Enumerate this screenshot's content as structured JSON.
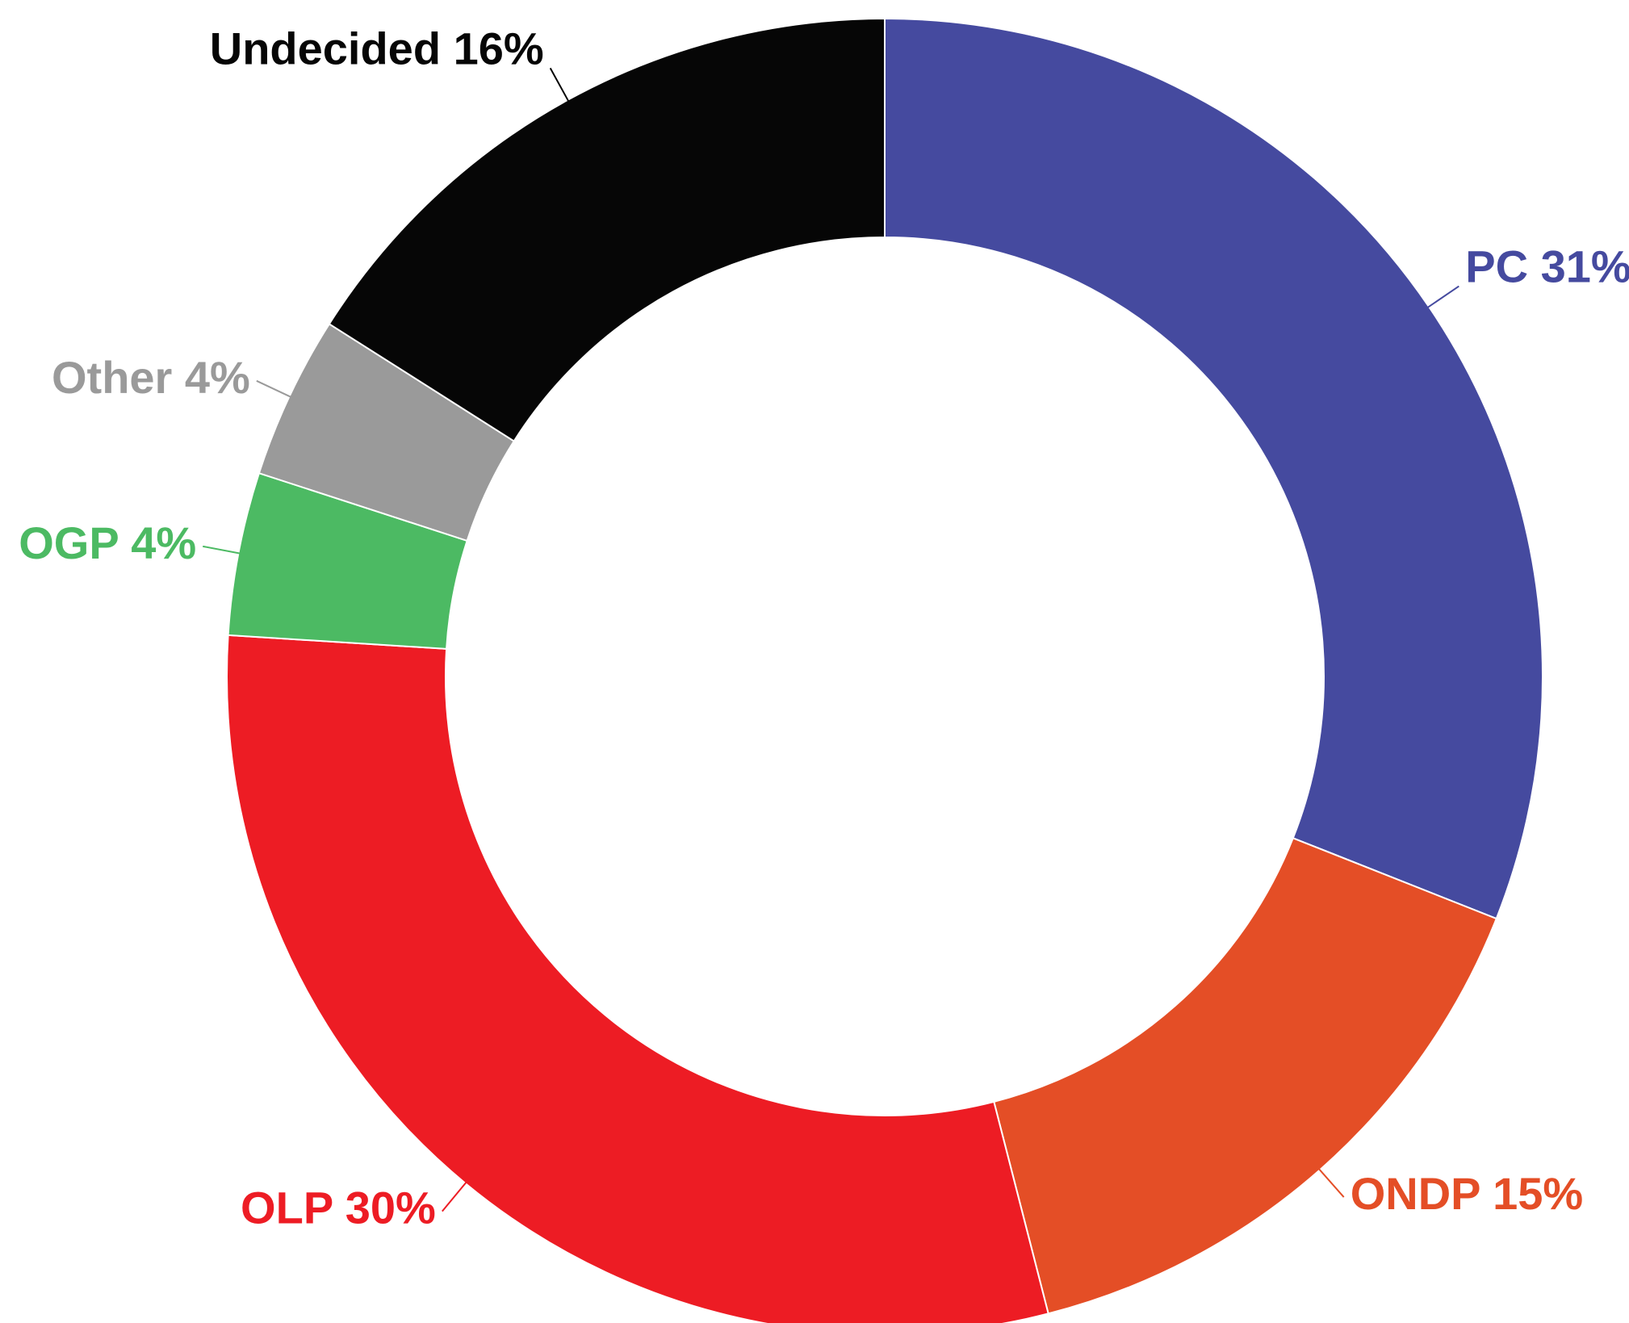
{
  "chart_data": {
    "type": "donut",
    "categories": [
      "PC",
      "ONDP",
      "OLP",
      "OGP",
      "Other",
      "Undecided"
    ],
    "values": [
      31,
      15,
      30,
      4,
      4,
      16
    ],
    "value_labels": [
      "31%",
      "15%",
      "30%",
      "4%",
      "4%",
      "16%"
    ],
    "colors": [
      "#454a9f",
      "#e44e26",
      "#ed1c24",
      "#4cba63",
      "#9a9a9a",
      "#060606"
    ]
  }
}
